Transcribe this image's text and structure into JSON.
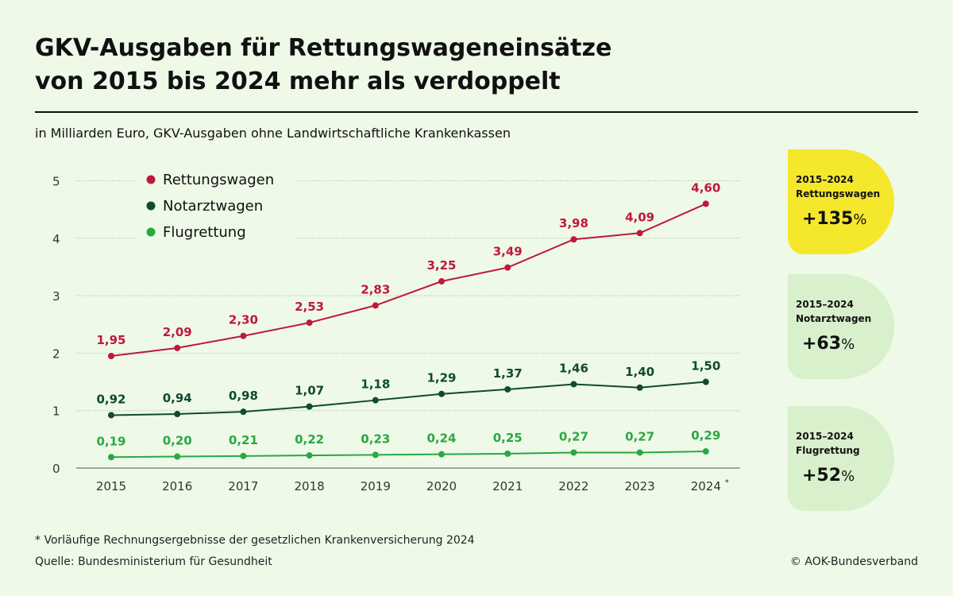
{
  "title_lines": [
    "GKV-Ausgaben für Rettungswageneinsätze",
    "von 2015 bis 2024 mehr als verdoppelt"
  ],
  "subtitle": "in Milliarden Euro, GKV-Ausgaben ohne Landwirtschaftliche Krankenkassen",
  "footnote": "* Vorläufige Rechnungsergebnisse der gesetzlichen Krankenversicherung 2024",
  "source": "Quelle: Bundesministerium für Gesundheit",
  "copyright": "© AOK-Bundesverband",
  "colors": {
    "background": "#eef9e8",
    "rettungswagen": "#c0183a",
    "notarztwagen": "#0f4a31",
    "flugrettung": "#2aa843",
    "badge_yellow": "#f5e72c",
    "badge_green": "#d8f0cc"
  },
  "chart_data": {
    "type": "line",
    "x": [
      "2015",
      "2016",
      "2017",
      "2018",
      "2019",
      "2020",
      "2021",
      "2022",
      "2023",
      "2024"
    ],
    "x_marker_last": "*",
    "ylim": [
      0,
      5
    ],
    "yticks": [
      0,
      1,
      2,
      3,
      4,
      5
    ],
    "grid": true,
    "legend_position": "top-left",
    "series": [
      {
        "name": "Rettungswagen",
        "values": [
          1.95,
          2.09,
          2.3,
          2.53,
          2.83,
          3.25,
          3.49,
          3.98,
          4.09,
          4.6
        ],
        "labels": [
          "1,95",
          "2,09",
          "2,30",
          "2,53",
          "2,83",
          "3,25",
          "3,49",
          "3,98",
          "4,09",
          "4,60"
        ]
      },
      {
        "name": "Notarztwagen",
        "values": [
          0.92,
          0.94,
          0.98,
          1.07,
          1.18,
          1.29,
          1.37,
          1.46,
          1.4,
          1.5
        ],
        "labels": [
          "0,92",
          "0,94",
          "0,98",
          "1,07",
          "1,18",
          "1,29",
          "1,37",
          "1,46",
          "1,40",
          "1,50"
        ]
      },
      {
        "name": "Flugrettung",
        "values": [
          0.19,
          0.2,
          0.21,
          0.22,
          0.23,
          0.24,
          0.25,
          0.27,
          0.27,
          0.29
        ],
        "labels": [
          "0,19",
          "0,20",
          "0,21",
          "0,22",
          "0,23",
          "0,24",
          "0,25",
          "0,27",
          "0,27",
          "0,29"
        ]
      }
    ]
  },
  "badges": [
    {
      "period": "2015–2024",
      "label": "Rettungswagen",
      "change": "+135",
      "unit": "%"
    },
    {
      "period": "2015–2024",
      "label": "Notarztwagen",
      "change": "+63",
      "unit": "%"
    },
    {
      "period": "2015–2024",
      "label": "Flugrettung",
      "change": "+52",
      "unit": "%"
    }
  ]
}
